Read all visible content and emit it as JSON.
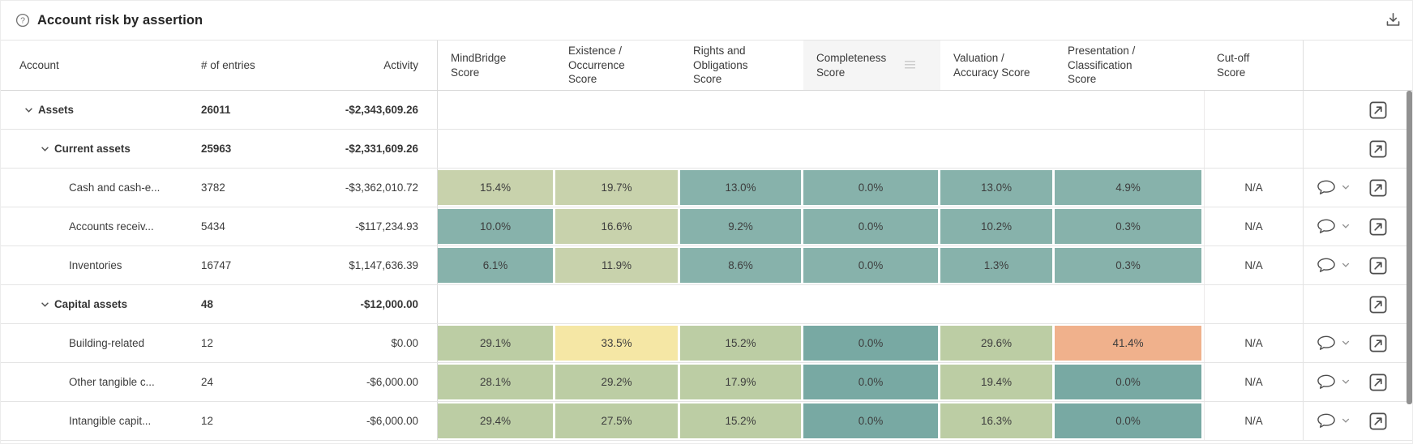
{
  "widget": {
    "title": "Account risk by assertion"
  },
  "header": {
    "columns": [
      {
        "key": "account",
        "label": "Account"
      },
      {
        "key": "entries",
        "label": "# of entries"
      },
      {
        "key": "activity",
        "label": "Activity"
      },
      {
        "key": "mindbridge",
        "label": "MindBridge Score"
      },
      {
        "key": "existence",
        "label": "Existence / Occurrence Score"
      },
      {
        "key": "rights",
        "label": "Rights and Obligations Score"
      },
      {
        "key": "completeness",
        "label": "Completeness Score",
        "highlighted": true,
        "menu_icon": true
      },
      {
        "key": "valuation",
        "label": "Valuation / Accuracy Score"
      },
      {
        "key": "presentation",
        "label": "Presentation / Classification Score"
      },
      {
        "key": "cutoff",
        "label": "Cut-off Score"
      },
      {
        "key": "actions",
        "label": ""
      }
    ]
  },
  "colors": {
    "teal": "#87b2ab",
    "teal_dark": "#78a9a3",
    "sage_light": "#c8d2ac",
    "sage": "#bccda4",
    "yellow": "#f5e7a5",
    "orange": "#f0b18c",
    "header_highlight": "#f5f5f5",
    "scrollbar_thumb": "#919191"
  },
  "rows": [
    {
      "account": "Assets",
      "level": 1,
      "parent": true,
      "expanded": true,
      "entries": "26011",
      "activity": "-$2,343,609.26",
      "scores": null,
      "cutoff": "",
      "has_comment": false,
      "has_open": true
    },
    {
      "account": "Current assets",
      "level": 2,
      "parent": true,
      "expanded": true,
      "entries": "25963",
      "activity": "-$2,331,609.26",
      "scores": null,
      "cutoff": "",
      "has_comment": false,
      "has_open": true
    },
    {
      "account": "Cash and cash-e...",
      "level": 3,
      "parent": false,
      "entries": "3782",
      "activity": "-$3,362,010.72",
      "scores": [
        {
          "value": "15.4%",
          "color_key": "sage_light"
        },
        {
          "value": "19.7%",
          "color_key": "sage_light"
        },
        {
          "value": "13.0%",
          "color_key": "teal"
        },
        {
          "value": "0.0%",
          "color_key": "teal"
        },
        {
          "value": "13.0%",
          "color_key": "teal"
        },
        {
          "value": "4.9%",
          "color_key": "teal"
        }
      ],
      "cutoff": "N/A",
      "has_comment": true,
      "has_open": true
    },
    {
      "account": "Accounts receiv...",
      "level": 3,
      "parent": false,
      "entries": "5434",
      "activity": "-$117,234.93",
      "scores": [
        {
          "value": "10.0%",
          "color_key": "teal"
        },
        {
          "value": "16.6%",
          "color_key": "sage_light"
        },
        {
          "value": "9.2%",
          "color_key": "teal"
        },
        {
          "value": "0.0%",
          "color_key": "teal"
        },
        {
          "value": "10.2%",
          "color_key": "teal"
        },
        {
          "value": "0.3%",
          "color_key": "teal"
        }
      ],
      "cutoff": "N/A",
      "has_comment": true,
      "has_open": true
    },
    {
      "account": "Inventories",
      "level": 3,
      "parent": false,
      "entries": "16747",
      "activity": "$1,147,636.39",
      "scores": [
        {
          "value": "6.1%",
          "color_key": "teal"
        },
        {
          "value": "11.9%",
          "color_key": "sage_light"
        },
        {
          "value": "8.6%",
          "color_key": "teal"
        },
        {
          "value": "0.0%",
          "color_key": "teal"
        },
        {
          "value": "1.3%",
          "color_key": "teal"
        },
        {
          "value": "0.3%",
          "color_key": "teal"
        }
      ],
      "cutoff": "N/A",
      "has_comment": true,
      "has_open": true
    },
    {
      "account": "Capital assets",
      "level": 2,
      "parent": true,
      "expanded": true,
      "entries": "48",
      "activity": "-$12,000.00",
      "scores": null,
      "cutoff": "",
      "has_comment": false,
      "has_open": true
    },
    {
      "account": "Building-related",
      "level": 3,
      "parent": false,
      "entries": "12",
      "activity": "$0.00",
      "scores": [
        {
          "value": "29.1%",
          "color_key": "sage"
        },
        {
          "value": "33.5%",
          "color_key": "yellow"
        },
        {
          "value": "15.2%",
          "color_key": "sage"
        },
        {
          "value": "0.0%",
          "color_key": "teal_dark"
        },
        {
          "value": "29.6%",
          "color_key": "sage"
        },
        {
          "value": "41.4%",
          "color_key": "orange"
        }
      ],
      "cutoff": "N/A",
      "has_comment": true,
      "has_open": true
    },
    {
      "account": "Other tangible c...",
      "level": 3,
      "parent": false,
      "entries": "24",
      "activity": "-$6,000.00",
      "scores": [
        {
          "value": "28.1%",
          "color_key": "sage"
        },
        {
          "value": "29.2%",
          "color_key": "sage"
        },
        {
          "value": "17.9%",
          "color_key": "sage"
        },
        {
          "value": "0.0%",
          "color_key": "teal_dark"
        },
        {
          "value": "19.4%",
          "color_key": "sage"
        },
        {
          "value": "0.0%",
          "color_key": "teal_dark"
        }
      ],
      "cutoff": "N/A",
      "has_comment": true,
      "has_open": true
    },
    {
      "account": "Intangible capit...",
      "level": 3,
      "parent": false,
      "entries": "12",
      "activity": "-$6,000.00",
      "scores": [
        {
          "value": "29.4%",
          "color_key": "sage"
        },
        {
          "value": "27.5%",
          "color_key": "sage"
        },
        {
          "value": "15.2%",
          "color_key": "sage"
        },
        {
          "value": "0.0%",
          "color_key": "teal_dark"
        },
        {
          "value": "16.3%",
          "color_key": "sage"
        },
        {
          "value": "0.0%",
          "color_key": "teal_dark"
        }
      ],
      "cutoff": "N/A",
      "has_comment": true,
      "has_open": true
    }
  ]
}
